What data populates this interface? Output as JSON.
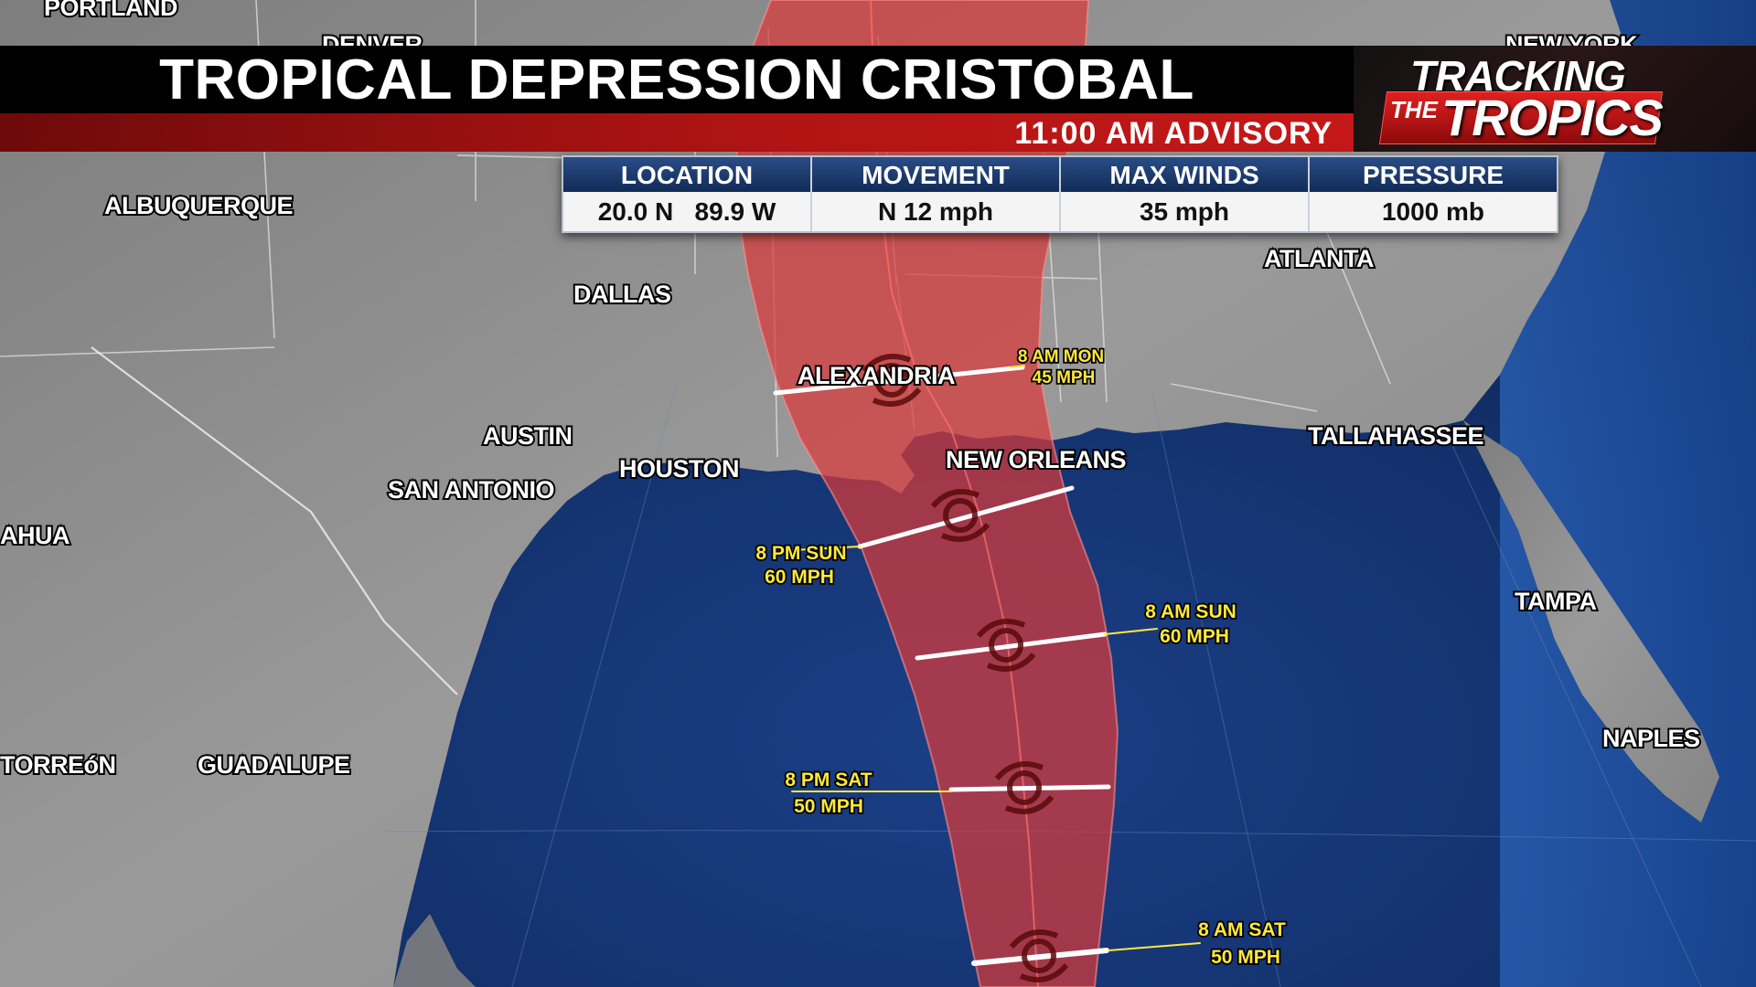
{
  "header": {
    "title": "TROPICAL DEPRESSION CRISTOBAL",
    "advisory": "11:00 AM ADVISORY",
    "logo": {
      "line1": "TRACKING",
      "the": "THE",
      "line2": "TROPICS"
    }
  },
  "info_table": {
    "columns": [
      {
        "label": "LOCATION",
        "value": "20.0 N   89.9 W"
      },
      {
        "label": "MOVEMENT",
        "value": "N 12 mph"
      },
      {
        "label": "MAX WINDS",
        "value": "35 mph"
      },
      {
        "label": "PRESSURE",
        "value": "1000 mb"
      }
    ]
  },
  "cities": [
    {
      "id": "portland",
      "name": "PORTLAND"
    },
    {
      "id": "denver",
      "name": "DENVER"
    },
    {
      "id": "new-york",
      "name": "NEW YORK"
    },
    {
      "id": "albuquerque",
      "name": "ALBUQUERQUE"
    },
    {
      "id": "dallas",
      "name": "DALLAS"
    },
    {
      "id": "atlanta",
      "name": "ATLANTA"
    },
    {
      "id": "alexandria",
      "name": "ALEXANDRIA"
    },
    {
      "id": "austin",
      "name": "AUSTIN"
    },
    {
      "id": "houston",
      "name": "HOUSTON"
    },
    {
      "id": "san-antonio",
      "name": "SAN ANTONIO"
    },
    {
      "id": "new-orleans",
      "name": "NEW ORLEANS"
    },
    {
      "id": "tallahassee",
      "name": "TALLAHASSEE"
    },
    {
      "id": "chihuahua",
      "name": "AHUA"
    },
    {
      "id": "tampa",
      "name": "TAMPA"
    },
    {
      "id": "naples",
      "name": "NAPLES"
    },
    {
      "id": "torreon",
      "name": "TORREóN"
    },
    {
      "id": "guadalupe",
      "name": "GUADALUPE"
    }
  ],
  "forecast_points": [
    {
      "id": "8am-sat",
      "time": "8 AM SAT",
      "wind": "50 MPH"
    },
    {
      "id": "8pm-sat",
      "time": "8 PM SAT",
      "wind": "50 MPH"
    },
    {
      "id": "8am-sun",
      "time": "8 AM SUN",
      "wind": "60 MPH"
    },
    {
      "id": "8pm-sun",
      "time": "8 PM SUN",
      "wind": "60 MPH"
    },
    {
      "id": "8am-mon",
      "time": "8 AM MON",
      "wind": "45 MPH"
    }
  ],
  "colors": {
    "cone": "#d83a3a",
    "ocean": "#12306a",
    "land": "#8a8a8a",
    "header_red": "#b01414",
    "table_header": "#1d3c70",
    "forecast_text": "#ffe83a"
  }
}
